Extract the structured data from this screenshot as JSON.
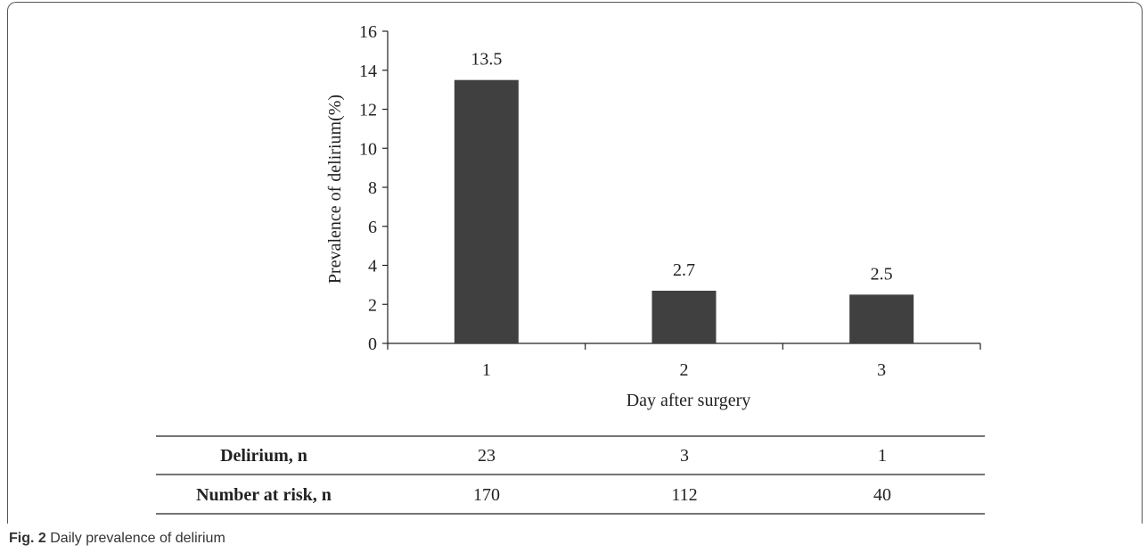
{
  "chart_data": {
    "type": "bar",
    "categories": [
      "1",
      "2",
      "3"
    ],
    "values": [
      13.5,
      2.7,
      2.5
    ],
    "data_labels": [
      "13.5",
      "2.7",
      "2.5"
    ],
    "xlabel": "Day after surgery",
    "ylabel": "Prevalence of delirium(%)",
    "ylim": [
      0,
      16
    ],
    "yticks": [
      "0",
      "2",
      "4",
      "6",
      "8",
      "10",
      "12",
      "14",
      "16"
    ],
    "grid": false,
    "bar_color": "#404040"
  },
  "risk_table": {
    "rows": [
      {
        "label": "Delirium, n",
        "values": [
          "23",
          "3",
          "1"
        ]
      },
      {
        "label": "Number at risk, n",
        "values": [
          "170",
          "112",
          "40"
        ]
      }
    ]
  },
  "caption": {
    "fig_label": "Fig. 2",
    "text": "Daily prevalence of delirium"
  }
}
